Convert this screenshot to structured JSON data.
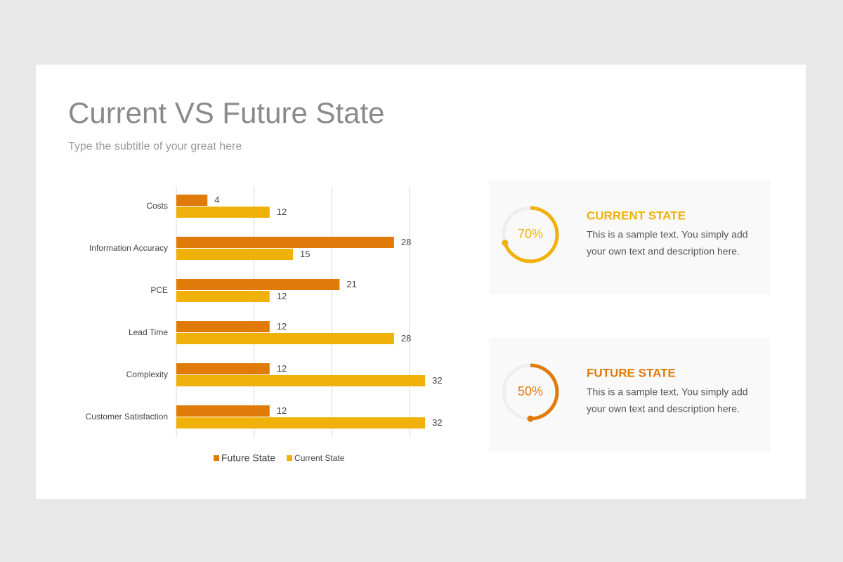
{
  "header": {
    "title": "Current VS Future State",
    "subtitle": "Type the subtitle of your great here"
  },
  "chart_data": {
    "type": "bar",
    "orientation": "horizontal",
    "categories": [
      "Costs",
      "Information Accuracy",
      "PCE",
      "Lead Time",
      "Complexity",
      "Customer Satisfaction"
    ],
    "series": [
      {
        "name": "Future State",
        "color": "#e07b0a",
        "values": [
          4,
          28,
          21,
          12,
          12,
          12
        ]
      },
      {
        "name": "Current State",
        "color": "#f0b20a",
        "values": [
          12,
          15,
          12,
          28,
          32,
          32
        ]
      }
    ],
    "xlim": [
      0,
      30
    ],
    "xticks": [
      0,
      10,
      20,
      30
    ],
    "grid": true,
    "legend": "bottom"
  },
  "cards": [
    {
      "title": "CURRENT STATE",
      "color": "#f0b20a",
      "value": 70,
      "value_label": "70%",
      "text_lines": [
        "This is a sample text. You simply add",
        "your own text and description here."
      ]
    },
    {
      "title": "FUTURE STATE",
      "color": "#e07b0a",
      "value": 50,
      "value_label": "50%",
      "text_lines": [
        "This is a sample text. You simply add",
        "your own text and description here."
      ]
    }
  ]
}
